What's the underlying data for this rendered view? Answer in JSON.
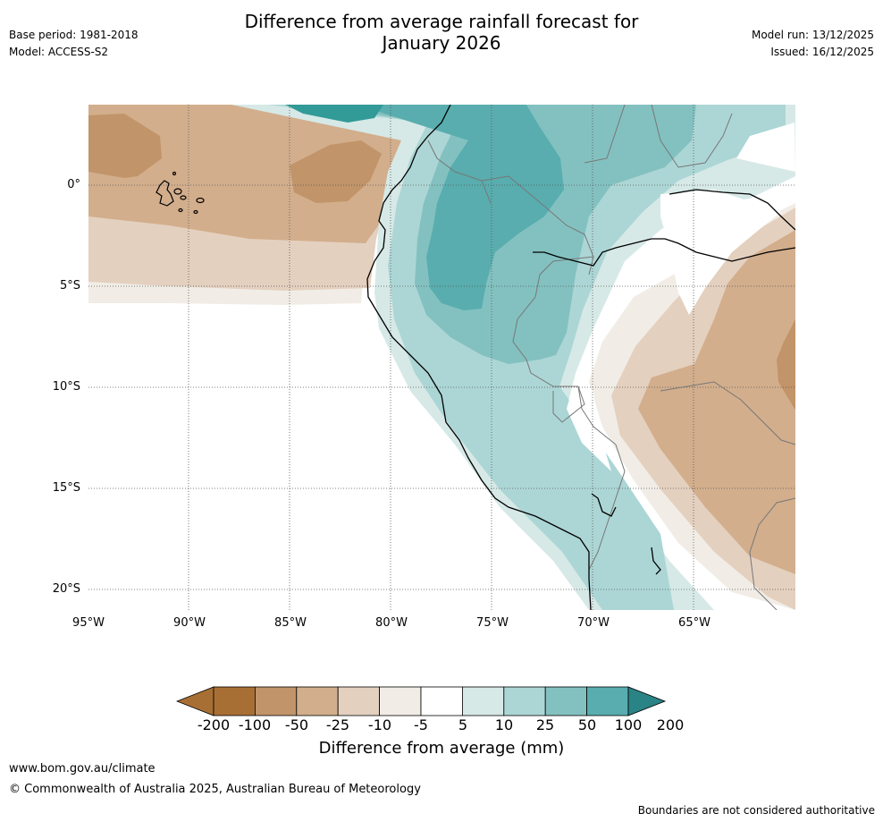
{
  "title": "Difference from average rainfall forecast for",
  "title_line2": "January 2026",
  "meta": {
    "base_period": "Base period: 1981-2018",
    "model": "Model: ACCESS-S2",
    "model_run": "Model run: 13/12/2025",
    "issued": "Issued: 16/12/2025"
  },
  "axes": {
    "latitudes": [
      "0°",
      "5°S",
      "10°S",
      "15°S",
      "20°S"
    ],
    "longitudes": [
      "95°W",
      "90°W",
      "85°W",
      "80°W",
      "75°W",
      "70°W",
      "65°W"
    ]
  },
  "colorbar": {
    "title": "Difference from average (mm)",
    "labels": [
      "-200",
      "-100",
      "-50",
      "-25",
      "-10",
      "-5",
      "5",
      "10",
      "25",
      "50",
      "100",
      "200"
    ],
    "colors": [
      "#a86f35",
      "#c19469",
      "#d2ae8c",
      "#e4d0bf",
      "#f1ede6",
      "#ffffff",
      "#d6e9e7",
      "#acd6d5",
      "#83c1c0",
      "#59adae",
      "#329a97",
      "#2a8385"
    ]
  },
  "footer": {
    "url": "www.bom.gov.au/climate",
    "copyright": "© Commonwealth of Australia 2025, Australian Bureau of Meteorology",
    "disclaimer": "Boundaries are not considered authoritative"
  }
}
